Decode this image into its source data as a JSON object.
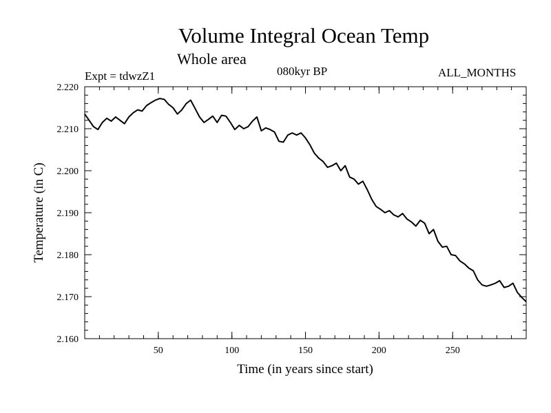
{
  "header": {
    "title": "Volume Integral Ocean Temp",
    "subtitle": "Whole area",
    "experiment": "Expt = tdwzZ1",
    "period": "080kyr BP",
    "months": "ALL_MONTHS"
  },
  "chart_data": {
    "type": "line",
    "title": "Volume Integral Ocean Temp",
    "subtitle": "Whole area",
    "xlabel": "Time (in years since start)",
    "ylabel": "Temperature (in C)",
    "xlim": [
      0,
      300
    ],
    "ylim": [
      2.16,
      2.22
    ],
    "xticks": [
      50,
      100,
      150,
      200,
      250
    ],
    "yticks": [
      2.16,
      2.17,
      2.18,
      2.19,
      2.2,
      2.21,
      2.22
    ],
    "ytick_labels": [
      "2.160",
      "2.170",
      "2.180",
      "2.190",
      "2.200",
      "2.210",
      "2.220"
    ],
    "grid": false,
    "series": [
      {
        "name": "Volume Integral Ocean Temp",
        "color": "#000000",
        "x": [
          0,
          3,
          6,
          9,
          12,
          15,
          18,
          21,
          24,
          27,
          30,
          33,
          36,
          39,
          42,
          45,
          48,
          51,
          54,
          57,
          60,
          63,
          66,
          69,
          72,
          75,
          78,
          81,
          84,
          87,
          90,
          93,
          96,
          99,
          102,
          105,
          108,
          111,
          114,
          117,
          120,
          123,
          126,
          129,
          132,
          135,
          138,
          141,
          144,
          147,
          150,
          153,
          156,
          159,
          162,
          165,
          168,
          171,
          174,
          177,
          180,
          183,
          186,
          189,
          192,
          195,
          198,
          201,
          204,
          207,
          210,
          213,
          216,
          219,
          222,
          225,
          228,
          231,
          234,
          237,
          240,
          243,
          246,
          249,
          252,
          255,
          258,
          261,
          264,
          267,
          270,
          273,
          276,
          279,
          282,
          285,
          288,
          291,
          294,
          297,
          300
        ],
        "values": [
          2.2135,
          2.212,
          2.2105,
          2.2098,
          2.2115,
          2.2125,
          2.2118,
          2.2128,
          2.212,
          2.2112,
          2.2128,
          2.2138,
          2.2145,
          2.2142,
          2.2155,
          2.2162,
          2.2168,
          2.2172,
          2.217,
          2.2158,
          2.215,
          2.2135,
          2.2145,
          2.216,
          2.2168,
          2.2148,
          2.2128,
          2.2115,
          2.2122,
          2.213,
          2.2115,
          2.2132,
          2.213,
          2.2115,
          2.2098,
          2.2108,
          2.21,
          2.2105,
          2.2118,
          2.2128,
          2.2095,
          2.2102,
          2.2098,
          2.2092,
          2.207,
          2.2068,
          2.2085,
          2.209,
          2.2085,
          2.209,
          2.2078,
          2.2062,
          2.2042,
          2.203,
          2.2022,
          2.2008,
          2.2012,
          2.2018,
          2.2,
          2.2012,
          2.1985,
          2.198,
          2.1968,
          2.1975,
          2.1955,
          2.1932,
          2.1915,
          2.1908,
          2.19,
          2.1905,
          2.1895,
          2.189,
          2.1898,
          2.1885,
          2.1878,
          2.1868,
          2.1882,
          2.1875,
          2.185,
          2.186,
          2.1832,
          2.1818,
          2.182,
          2.18,
          2.1798,
          2.1785,
          2.1778,
          2.1768,
          2.1762,
          2.174,
          2.1728,
          2.1725,
          2.1728,
          2.1732,
          2.1738,
          2.1722,
          2.1725,
          2.1732,
          2.171,
          2.1698,
          2.1688
        ]
      }
    ]
  }
}
